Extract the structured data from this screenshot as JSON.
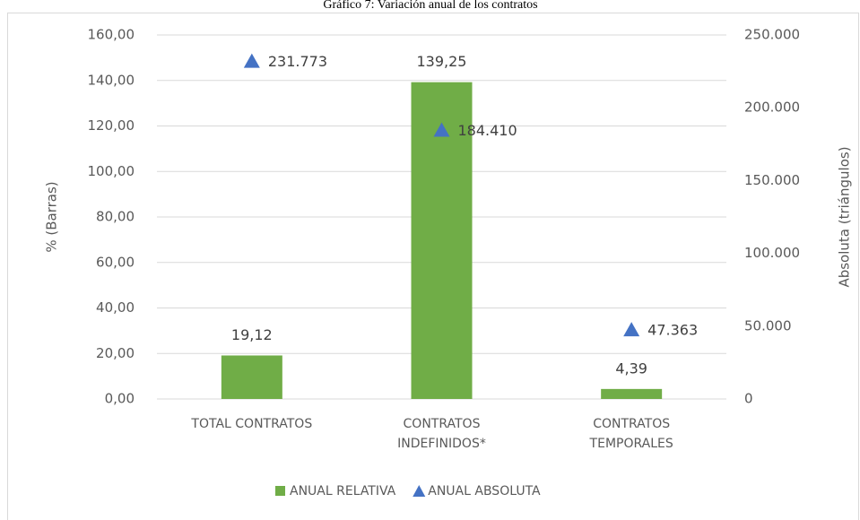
{
  "chart_data": {
    "type": "bar_scatter",
    "title": "Gráfico 7: Variación anual de los contratos",
    "ylabel": "% (Barras)",
    "y2label": "Absoluta (triángulos)",
    "categories": [
      "TOTAL CONTRATOS",
      "CONTRATOS INDEFINIDOS*",
      "CONTRATOS TEMPORALES"
    ],
    "series": [
      {
        "name": "ANUAL RELATIVA",
        "type": "bar",
        "color": "#70ad47",
        "values": [
          19.12,
          139.25,
          4.39
        ],
        "value_labels": [
          "19,12",
          "139,25",
          "4,39"
        ]
      },
      {
        "name": "ANUAL ABSOLUTA",
        "type": "scatter",
        "marker": "triangle",
        "axis": "y2",
        "color": "#4472c4",
        "values": [
          231773,
          184410,
          47363
        ],
        "value_labels": [
          "231.773",
          "184.410",
          "47.363"
        ]
      }
    ],
    "ylim": [
      0,
      160
    ],
    "yticks": [
      {
        "value": 0,
        "label": "0,00"
      },
      {
        "value": 20,
        "label": "20,00"
      },
      {
        "value": 40,
        "label": "40,00"
      },
      {
        "value": 60,
        "label": "60,00"
      },
      {
        "value": 80,
        "label": "80,00"
      },
      {
        "value": 100,
        "label": "100,00"
      },
      {
        "value": 120,
        "label": "120,00"
      },
      {
        "value": 140,
        "label": "140,00"
      },
      {
        "value": 160,
        "label": "160,00"
      }
    ],
    "y2lim": [
      0,
      250000
    ],
    "y2ticks": [
      0,
      {
        "value": 50000,
        "label": "50.000"
      },
      {
        "value": 100000,
        "label": "100.000"
      },
      {
        "value": 150000,
        "label": "150.000"
      },
      {
        "value": 200000,
        "label": "200.000"
      },
      {
        "value": 250000,
        "label": "250.000"
      }
    ],
    "grid": true,
    "legend": "bottom"
  }
}
